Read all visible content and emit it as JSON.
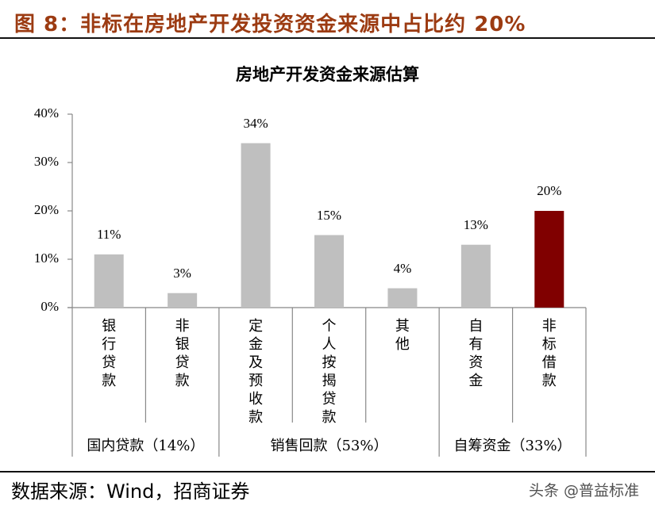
{
  "figure": {
    "title": "图 8：非标在房地产开发投资资金来源中占比约 20%",
    "source": "数据来源：Wind，招商证券",
    "watermark": "头条 @普益标准"
  },
  "chart_data": {
    "type": "bar",
    "title": "房地产开发资金来源估算",
    "xlabel": "",
    "ylabel": "",
    "ylim": [
      0,
      40
    ],
    "yticks": [
      "0%",
      "10%",
      "20%",
      "30%",
      "40%"
    ],
    "grid": false,
    "legend": null,
    "categories": [
      "银行贷款",
      "非银贷款",
      "定金及预收款",
      "个人按揭贷款",
      "其他",
      "自有资金",
      "非标借款"
    ],
    "values": [
      11,
      3,
      34,
      15,
      4,
      13,
      20
    ],
    "value_labels": [
      "11%",
      "3%",
      "34%",
      "15%",
      "4%",
      "13%",
      "20%"
    ],
    "bar_colors": [
      "#bfbfbf",
      "#bfbfbf",
      "#bfbfbf",
      "#bfbfbf",
      "#bfbfbf",
      "#bfbfbf",
      "#800000"
    ],
    "groups": [
      {
        "label": "国内贷款（14%）",
        "categories": [
          "银行贷款",
          "非银贷款"
        ],
        "share": 14
      },
      {
        "label": "销售回款（53%）",
        "categories": [
          "定金及预收款",
          "个人按揭贷款",
          "其他"
        ],
        "share": 53
      },
      {
        "label": "自筹资金（33%）",
        "categories": [
          "自有资金",
          "非标借款"
        ],
        "share": 33
      }
    ]
  }
}
